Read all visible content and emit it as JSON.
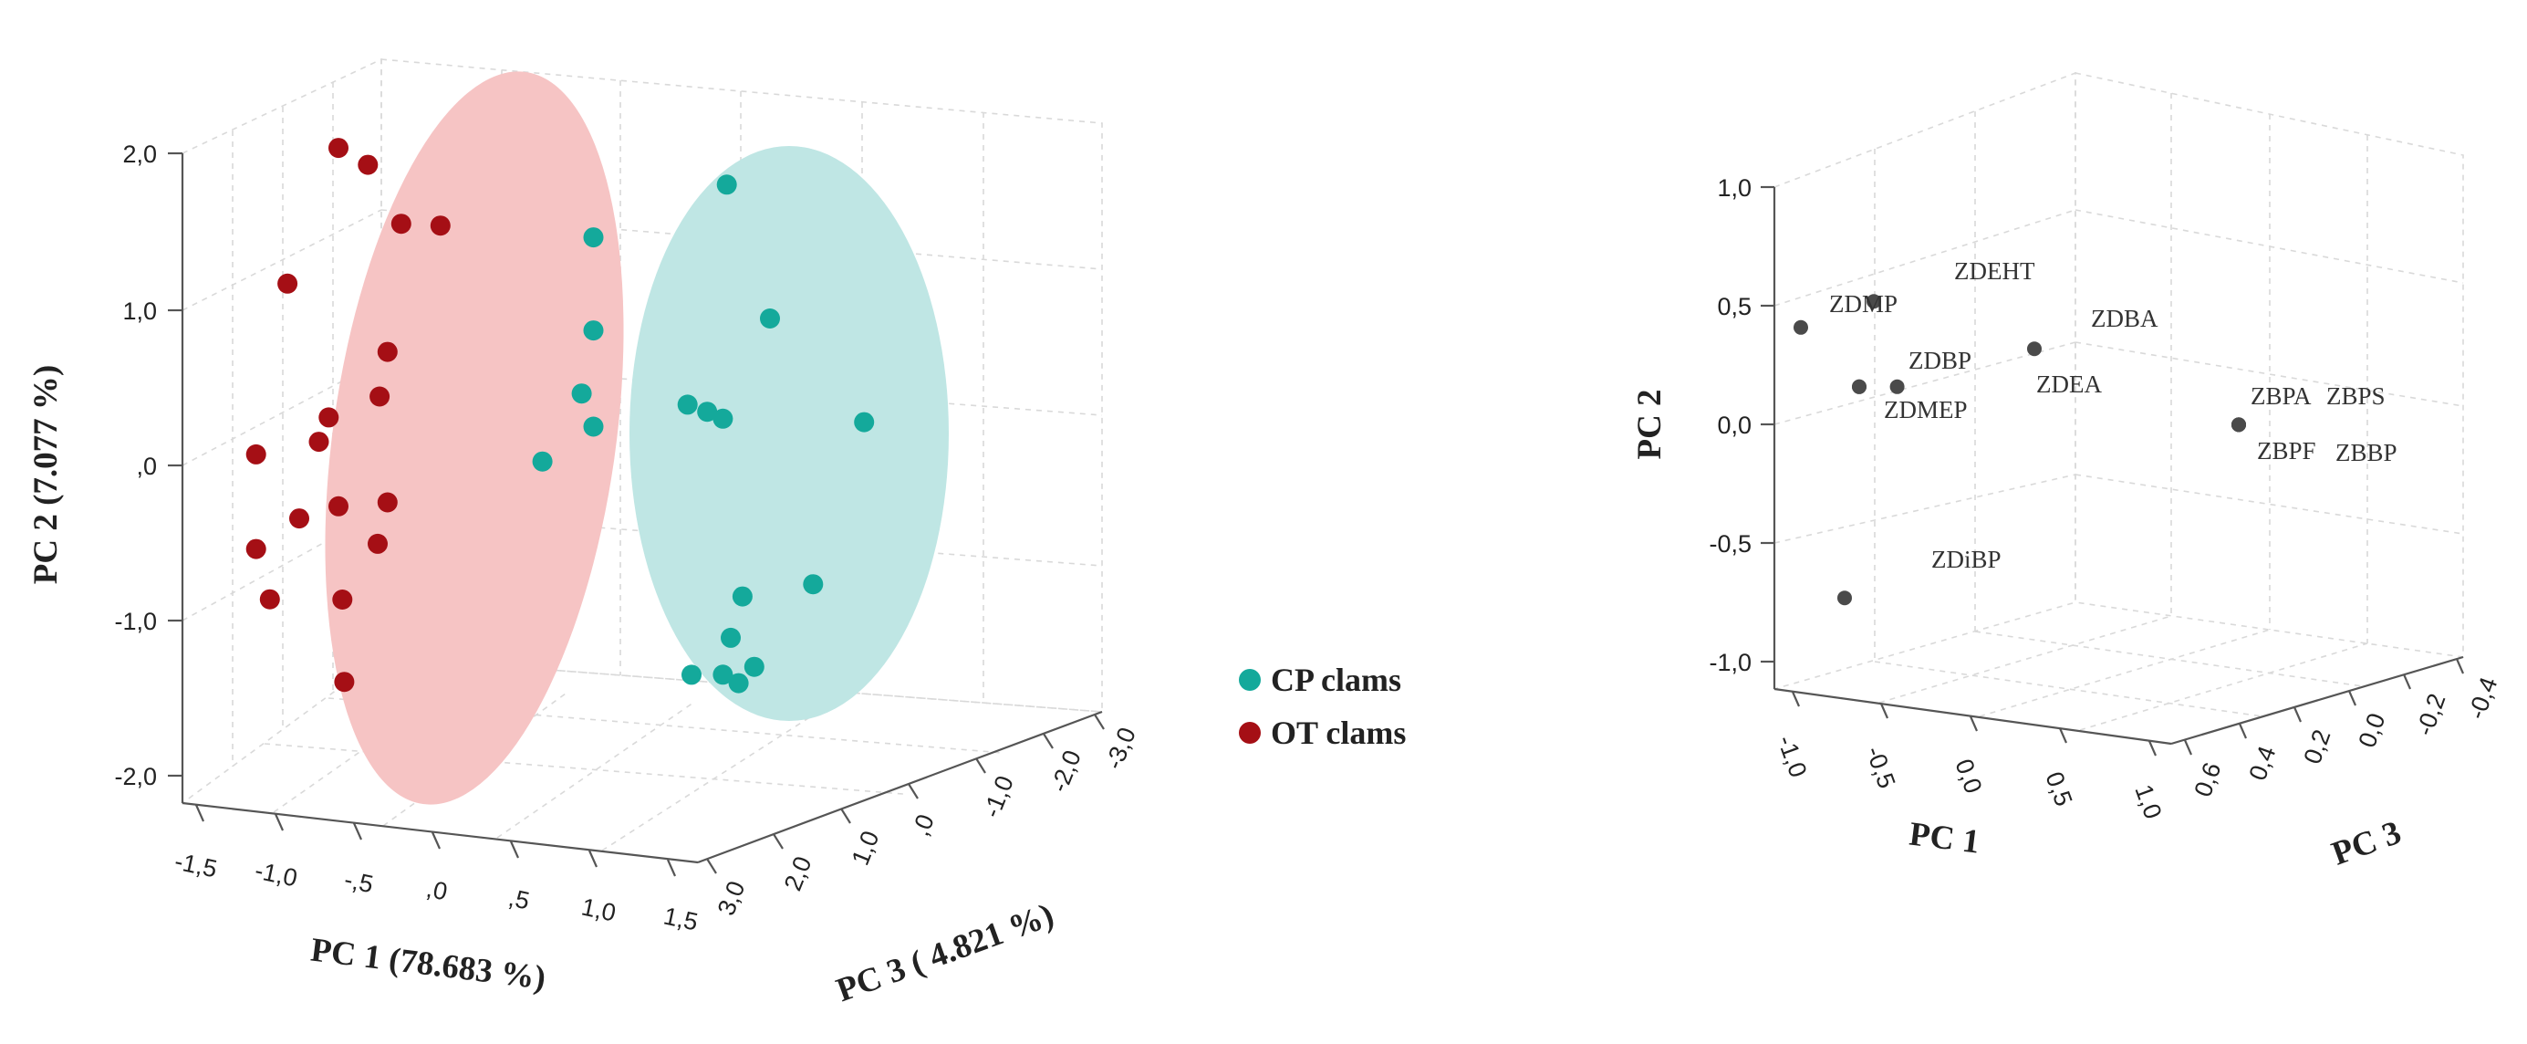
{
  "chart_data": [
    {
      "type": "scatter",
      "title": "",
      "xlabel": "PC 1 (78.683 %)",
      "ylabel": "PC 2 (7.077 %)",
      "zlabel": "PC 3 ( 4.821 %)",
      "x_ticks": [
        "-1,5",
        "-1,0",
        "-,5",
        ",0",
        ",5",
        "1,0",
        "1,5"
      ],
      "x_tick_values": [
        -1.5,
        -1.0,
        -0.5,
        0.0,
        0.5,
        1.0,
        1.5
      ],
      "y_ticks": [
        "2,0",
        "1,0",
        ",0",
        "-1,0",
        "-2,0"
      ],
      "y_tick_values": [
        2.0,
        1.0,
        0.0,
        -1.0,
        -2.0
      ],
      "z_ticks": [
        "3,0",
        "2,0",
        "1,0",
        ",0",
        "-1,0",
        "-2,0",
        "-3,0"
      ],
      "z_tick_values": [
        3.0,
        2.0,
        1.0,
        0.0,
        -1.0,
        -2.0,
        -3.0
      ],
      "xlim": [
        -1.5,
        1.5
      ],
      "ylim": [
        -2.0,
        2.0
      ],
      "zlim": [
        -3.0,
        3.0
      ],
      "legend": {
        "position": "right",
        "entries": [
          "CP clams",
          "OT clams"
        ]
      },
      "series": [
        {
          "name": "CP clams",
          "color": "#14a99b",
          "ellipse_color": "#bfe6e4",
          "points": [
            {
              "x": 0.88,
              "y": 1.85,
              "z": 0.0
            },
            {
              "x": 0.2,
              "y": 1.47,
              "z": 0.0
            },
            {
              "x": 1.1,
              "y": 1.0,
              "z": 0.0
            },
            {
              "x": 0.2,
              "y": 0.87,
              "z": 0.0
            },
            {
              "x": 0.14,
              "y": 0.46,
              "z": 0.0
            },
            {
              "x": 0.2,
              "y": 0.25,
              "z": 0.0
            },
            {
              "x": 0.68,
              "y": 0.42,
              "z": 0.0
            },
            {
              "x": 0.78,
              "y": 0.38,
              "z": 0.0
            },
            {
              "x": 0.86,
              "y": 0.34,
              "z": 0.0
            },
            {
              "x": 1.58,
              "y": 0.36,
              "z": 0.0
            },
            {
              "x": -0.06,
              "y": 0.01,
              "z": 0.0
            },
            {
              "x": 1.32,
              "y": -0.7,
              "z": 0.0
            },
            {
              "x": 0.96,
              "y": -0.8,
              "z": 0.0
            },
            {
              "x": 0.9,
              "y": -1.07,
              "z": 0.0
            },
            {
              "x": 1.02,
              "y": -1.25,
              "z": 0.0
            },
            {
              "x": 0.86,
              "y": -1.31,
              "z": 0.0
            },
            {
              "x": 0.7,
              "y": -1.32,
              "z": 0.0
            },
            {
              "x": 0.94,
              "y": -1.36,
              "z": 0.0
            }
          ]
        },
        {
          "name": "OT clams",
          "color": "#a50f15",
          "ellipse_color": "#f6c4c4",
          "points": [
            {
              "x": -1.1,
              "y": 1.97,
              "z": 0.0
            },
            {
              "x": -0.95,
              "y": 1.87,
              "z": 0.0
            },
            {
              "x": -0.78,
              "y": 1.5,
              "z": 0.0
            },
            {
              "x": -0.58,
              "y": 1.5,
              "z": 0.0
            },
            {
              "x": -1.36,
              "y": 1.08,
              "z": 0.0
            },
            {
              "x": -0.85,
              "y": 0.67,
              "z": 0.0
            },
            {
              "x": -0.89,
              "y": 0.38,
              "z": 0.0
            },
            {
              "x": -1.15,
              "y": 0.23,
              "z": 0.0
            },
            {
              "x": -1.2,
              "y": 0.07,
              "z": 0.0
            },
            {
              "x": -1.52,
              "y": -0.03,
              "z": 0.0
            },
            {
              "x": -1.1,
              "y": -0.34,
              "z": 0.0
            },
            {
              "x": -1.3,
              "y": -0.43,
              "z": 0.0
            },
            {
              "x": -0.85,
              "y": -0.3,
              "z": 0.0
            },
            {
              "x": -0.9,
              "y": -0.57,
              "z": 0.0
            },
            {
              "x": -1.52,
              "y": -0.64,
              "z": 0.0
            },
            {
              "x": -1.45,
              "y": -0.96,
              "z": 0.0
            },
            {
              "x": -1.08,
              "y": -0.94,
              "z": 0.0
            },
            {
              "x": -1.07,
              "y": -1.47,
              "z": 0.0
            }
          ]
        }
      ]
    },
    {
      "type": "scatter",
      "title": "",
      "xlabel": "PC 1",
      "ylabel": "PC 2",
      "zlabel": "PC 3",
      "x_ticks": [
        "-1,0",
        "-0,5",
        "0,0",
        "0,5",
        "1,0"
      ],
      "x_tick_values": [
        -1.0,
        -0.5,
        0.0,
        0.5,
        1.0
      ],
      "y_ticks": [
        "1,0",
        "0,5",
        "0,0",
        "-0,5",
        "-1,0"
      ],
      "y_tick_values": [
        1.0,
        0.5,
        0.0,
        -0.5,
        -1.0
      ],
      "z_ticks": [
        "0,6",
        "0,4",
        "0,2",
        "0,0",
        "-0,2",
        "-0,4"
      ],
      "z_tick_values": [
        0.6,
        0.4,
        0.2,
        0.0,
        -0.2,
        -0.4
      ],
      "xlim": [
        -1.0,
        1.0
      ],
      "ylim": [
        -1.0,
        1.0
      ],
      "zlim": [
        -0.4,
        0.6
      ],
      "point_color": "#4a4a4a",
      "points": [
        {
          "label": "ZDEHT",
          "x": -0.3,
          "y": 0.53,
          "z": 0.0
        },
        {
          "label": "ZDMP",
          "x": -0.55,
          "y": 0.42,
          "z": 0.0
        },
        {
          "label": "ZDBA",
          "x": 0.25,
          "y": 0.33,
          "z": 0.0
        },
        {
          "label": "ZDBP",
          "x": -0.35,
          "y": 0.17,
          "z": 0.0
        },
        {
          "label": "ZDEA",
          "x": -0.22,
          "y": 0.17,
          "z": 0.0
        },
        {
          "label": "ZDMEP",
          "x": -0.35,
          "y": 0.17,
          "z": 0.0
        },
        {
          "label": "ZBPA",
          "x": 0.95,
          "y": 0.01,
          "z": 0.0
        },
        {
          "label": "ZBPS",
          "x": 0.95,
          "y": 0.01,
          "z": 0.0
        },
        {
          "label": "ZBPF",
          "x": 0.95,
          "y": 0.01,
          "z": 0.0
        },
        {
          "label": "ZBBP",
          "x": 0.95,
          "y": 0.01,
          "z": 0.0
        },
        {
          "label": "ZDiBP",
          "x": -0.4,
          "y": -0.72,
          "z": 0.0
        }
      ]
    }
  ]
}
